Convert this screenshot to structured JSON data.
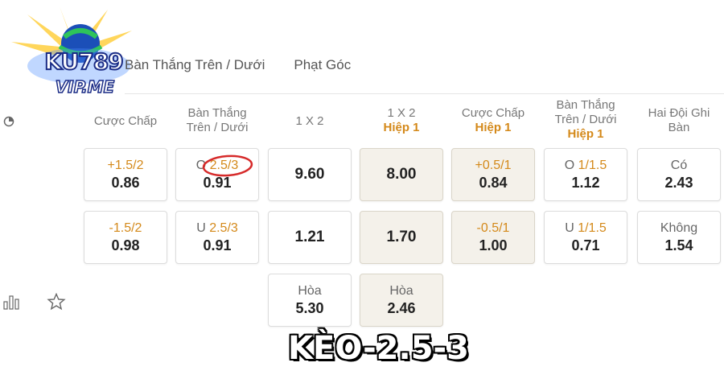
{
  "logo": {
    "line1": "KU789",
    "line2": "VIP.ME"
  },
  "tabs": [
    {
      "label": "Bàn Thắng Trên / Dưới"
    },
    {
      "label": "Phạt Góc"
    }
  ],
  "columns": [
    {
      "title": "Cược Chấp",
      "sub": ""
    },
    {
      "title": "Bàn Thắng Trên / Dưới",
      "sub": ""
    },
    {
      "title": "1 X 2",
      "sub": ""
    },
    {
      "title": "1 X 2",
      "sub": "Hiệp 1"
    },
    {
      "title": "Cược Chấp",
      "sub": "Hiệp 1"
    },
    {
      "title": "Bàn Thắng Trên / Dưới",
      "sub": "Hiệp 1"
    },
    {
      "title": "Hai Đội Ghi Bàn",
      "sub": ""
    }
  ],
  "rows": [
    [
      {
        "prefix": "",
        "line": "+1.5/2",
        "odds": "0.86"
      },
      {
        "prefix": "O ",
        "line": "2.5/3",
        "odds": "0.91"
      },
      {
        "prefix": "",
        "line": "",
        "odds": "9.60"
      },
      {
        "prefix": "",
        "line": "",
        "odds": "8.00"
      },
      {
        "prefix": "",
        "line": "+0.5/1",
        "odds": "0.84"
      },
      {
        "prefix": "O ",
        "line": "1/1.5",
        "odds": "1.12"
      },
      {
        "prefix": "Có",
        "line": "",
        "odds": "2.43"
      }
    ],
    [
      {
        "prefix": "",
        "line": "-1.5/2",
        "odds": "0.98"
      },
      {
        "prefix": "U ",
        "line": "2.5/3",
        "odds": "0.91"
      },
      {
        "prefix": "",
        "line": "",
        "odds": "1.21"
      },
      {
        "prefix": "",
        "line": "",
        "odds": "1.70"
      },
      {
        "prefix": "",
        "line": "-0.5/1",
        "odds": "1.00"
      },
      {
        "prefix": "U ",
        "line": "1/1.5",
        "odds": "0.71"
      },
      {
        "prefix": "Không",
        "line": "",
        "odds": "1.54"
      }
    ],
    [
      {
        "prefix": "Hòa",
        "line": "",
        "odds": "5.30"
      },
      {
        "prefix": "Hòa",
        "line": "",
        "odds": "2.46"
      }
    ]
  ],
  "caption": "KÈO-2.5-3",
  "colors": {
    "accent": "#d4891a",
    "highlight_circle": "#d62a2a",
    "shade_cell": "#f4f1ea"
  }
}
